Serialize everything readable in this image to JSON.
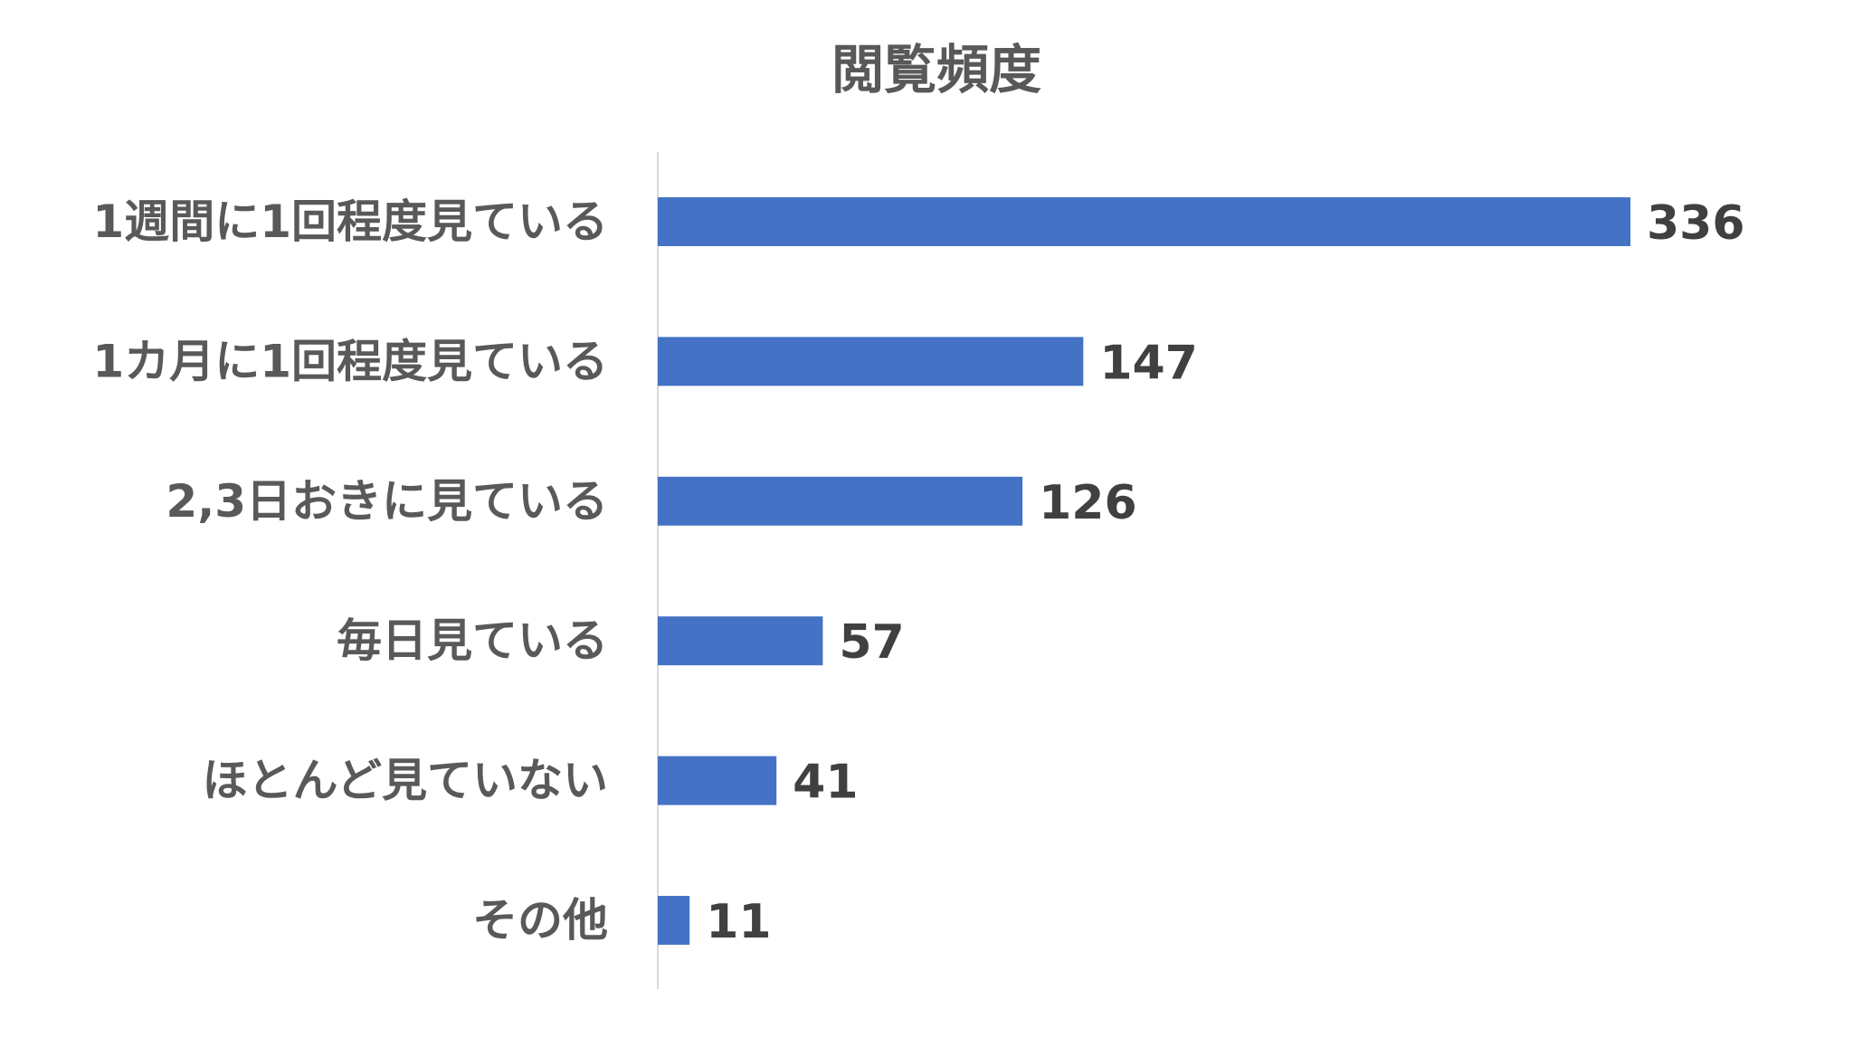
{
  "chart_data": {
    "type": "bar",
    "orientation": "horizontal",
    "title": "閲覧頻度",
    "categories": [
      "1週間に1回程度見ている",
      "1カ月に1回程度見ている",
      "2,3日おきに見ている",
      "毎日見ている",
      "ほとんど見ていない",
      "その他"
    ],
    "values": [
      336,
      147,
      126,
      57,
      41,
      11
    ],
    "xlabel": "",
    "ylabel": "",
    "xlim": [
      0,
      336
    ],
    "grid": false,
    "legend": "none",
    "data_labels": true,
    "colors": {
      "bar": "#4472C4",
      "axis": "#D9D9D9",
      "title": "#595959",
      "category_text": "#595959",
      "value_text": "#404040"
    }
  }
}
